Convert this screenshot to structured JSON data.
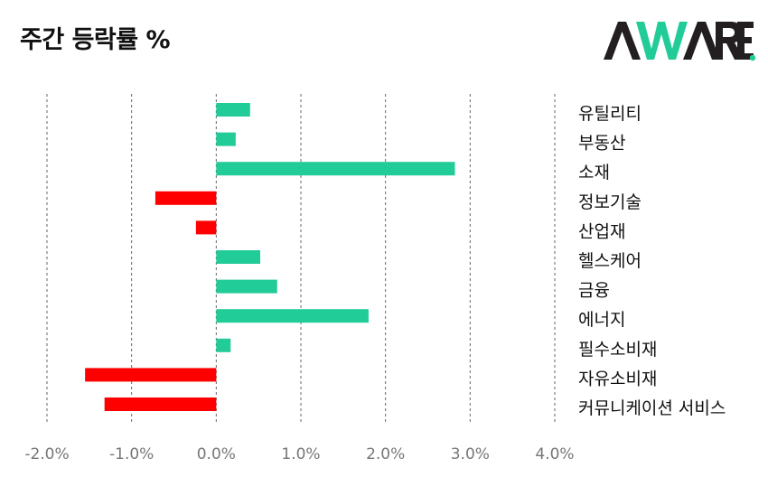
{
  "title": "주간 등락률 %",
  "logo": {
    "text": "AWARE",
    "colors": {
      "dark": "#231f20",
      "accent": "#22cc99"
    }
  },
  "chart_data": {
    "type": "bar",
    "orientation": "horizontal",
    "title": "주간 등락률 %",
    "categories": [
      "유틸리티",
      "부동산",
      "소재",
      "정보기술",
      "산업재",
      "헬스케어",
      "금융",
      "에너지",
      "필수소비재",
      "자유소비재",
      "커뮤니케이션 서비스"
    ],
    "values": [
      0.4,
      0.23,
      2.82,
      -0.72,
      -0.24,
      0.52,
      0.72,
      1.8,
      0.17,
      -1.55,
      -1.32
    ],
    "xlim": [
      -2.0,
      4.0
    ],
    "xticks": [
      "-2.0%",
      "-1.0%",
      "0.0%",
      "1.0%",
      "2.0%",
      "3.0%",
      "4.0%"
    ],
    "xtick_values": [
      -2.0,
      -1.0,
      0.0,
      1.0,
      2.0,
      3.0,
      4.0
    ],
    "grid": "vertical dashed",
    "colors": {
      "positive": "#22cc99",
      "negative": "#ff0000",
      "grid": "#666666"
    }
  }
}
